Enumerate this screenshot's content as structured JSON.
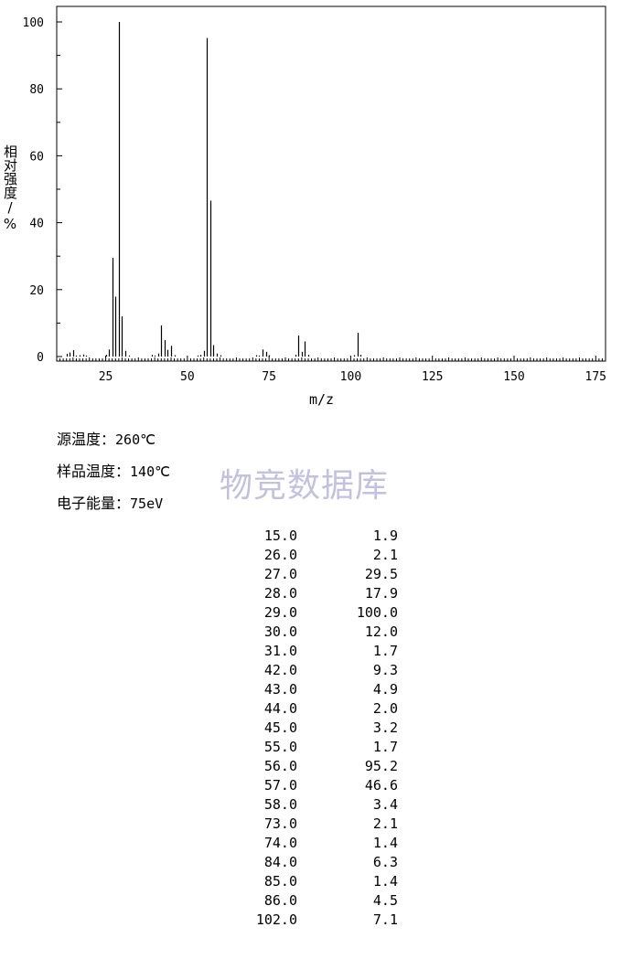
{
  "chart_data": {
    "type": "bar",
    "xlabel": "m/z",
    "ylabel": "相对强度/%",
    "xlim": [
      10,
      178
    ],
    "ylim": [
      0,
      100
    ],
    "x_ticks": [
      25,
      50,
      75,
      100,
      125,
      150,
      175
    ],
    "y_ticks": [
      0,
      20,
      40,
      60,
      80,
      100
    ],
    "peaks": [
      {
        "x": 13,
        "y": 0.8
      },
      {
        "x": 14,
        "y": 1.2
      },
      {
        "x": 15,
        "y": 1.9
      },
      {
        "x": 16,
        "y": 0.3
      },
      {
        "x": 17,
        "y": 0.4
      },
      {
        "x": 18,
        "y": 0.6
      },
      {
        "x": 19,
        "y": 0.3
      },
      {
        "x": 25,
        "y": 0.5
      },
      {
        "x": 26,
        "y": 2.1
      },
      {
        "x": 27,
        "y": 29.5
      },
      {
        "x": 28,
        "y": 17.9
      },
      {
        "x": 29,
        "y": 100.0
      },
      {
        "x": 30,
        "y": 12.0
      },
      {
        "x": 31,
        "y": 1.7
      },
      {
        "x": 32,
        "y": 0.3
      },
      {
        "x": 39,
        "y": 0.5
      },
      {
        "x": 40,
        "y": 0.3
      },
      {
        "x": 41,
        "y": 0.9
      },
      {
        "x": 42,
        "y": 9.3
      },
      {
        "x": 43,
        "y": 4.9
      },
      {
        "x": 44,
        "y": 2.0
      },
      {
        "x": 45,
        "y": 3.2
      },
      {
        "x": 46,
        "y": 0.4
      },
      {
        "x": 53,
        "y": 0.3
      },
      {
        "x": 54,
        "y": 0.5
      },
      {
        "x": 55,
        "y": 1.7
      },
      {
        "x": 56,
        "y": 95.2
      },
      {
        "x": 57,
        "y": 46.6
      },
      {
        "x": 58,
        "y": 3.4
      },
      {
        "x": 59,
        "y": 0.9
      },
      {
        "x": 60,
        "y": 0.4
      },
      {
        "x": 71,
        "y": 0.4
      },
      {
        "x": 72,
        "y": 0.3
      },
      {
        "x": 73,
        "y": 2.1
      },
      {
        "x": 74,
        "y": 1.4
      },
      {
        "x": 75,
        "y": 0.4
      },
      {
        "x": 83,
        "y": 0.5
      },
      {
        "x": 84,
        "y": 6.3
      },
      {
        "x": 85,
        "y": 1.4
      },
      {
        "x": 86,
        "y": 4.5
      },
      {
        "x": 87,
        "y": 0.5
      },
      {
        "x": 101,
        "y": 0.4
      },
      {
        "x": 102,
        "y": 7.1
      },
      {
        "x": 103,
        "y": 0.5
      }
    ]
  },
  "params": {
    "source_temp_label": "源温度：",
    "source_temp_value": "260℃",
    "sample_temp_label": "样品温度：",
    "sample_temp_value": "140℃",
    "electron_energy_label": "电子能量：",
    "electron_energy_value": "75eV"
  },
  "watermark": "物竞数据库",
  "peak_table": [
    {
      "mz": "15.0",
      "intensity": "1.9"
    },
    {
      "mz": "26.0",
      "intensity": "2.1"
    },
    {
      "mz": "27.0",
      "intensity": "29.5"
    },
    {
      "mz": "28.0",
      "intensity": "17.9"
    },
    {
      "mz": "29.0",
      "intensity": "100.0"
    },
    {
      "mz": "30.0",
      "intensity": "12.0"
    },
    {
      "mz": "31.0",
      "intensity": "1.7"
    },
    {
      "mz": "42.0",
      "intensity": "9.3"
    },
    {
      "mz": "43.0",
      "intensity": "4.9"
    },
    {
      "mz": "44.0",
      "intensity": "2.0"
    },
    {
      "mz": "45.0",
      "intensity": "3.2"
    },
    {
      "mz": "55.0",
      "intensity": "1.7"
    },
    {
      "mz": "56.0",
      "intensity": "95.2"
    },
    {
      "mz": "57.0",
      "intensity": "46.6"
    },
    {
      "mz": "58.0",
      "intensity": "3.4"
    },
    {
      "mz": "73.0",
      "intensity": "2.1"
    },
    {
      "mz": "74.0",
      "intensity": "1.4"
    },
    {
      "mz": "84.0",
      "intensity": "6.3"
    },
    {
      "mz": "85.0",
      "intensity": "1.4"
    },
    {
      "mz": "86.0",
      "intensity": "4.5"
    },
    {
      "mz": "102.0",
      "intensity": "7.1"
    }
  ]
}
